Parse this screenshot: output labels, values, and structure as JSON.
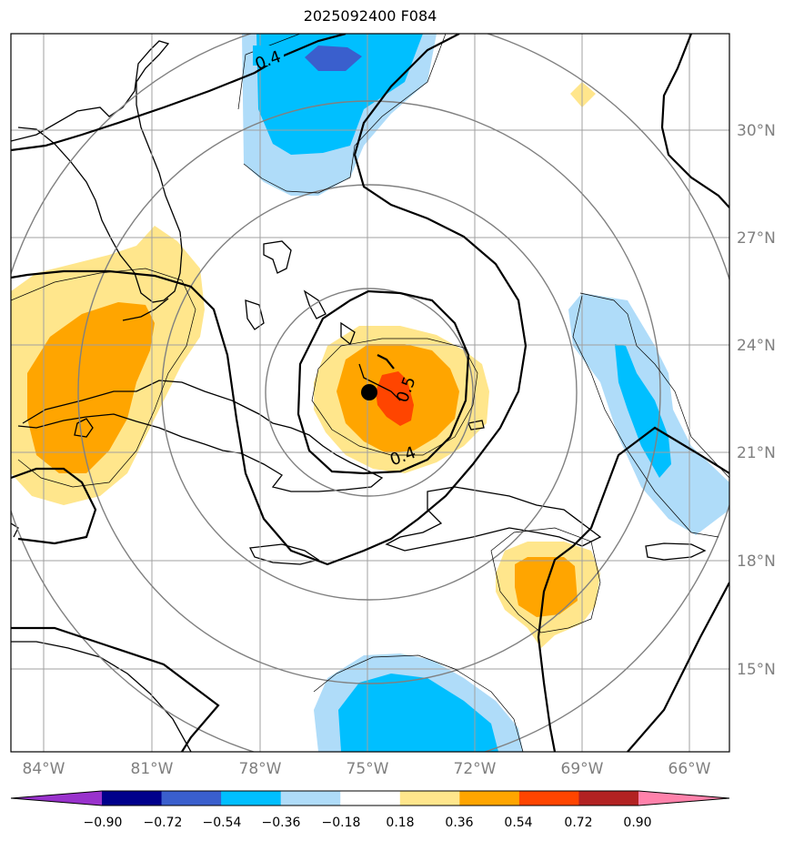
{
  "title": "2025092400 F084",
  "lon_labels": [
    "84°W",
    "81°W",
    "78°W",
    "75°W",
    "72°W",
    "69°W",
    "66°W"
  ],
  "lat_labels": [
    "30°N",
    "27°N",
    "24°N",
    "21°N",
    "18°N",
    "15°N"
  ],
  "contour_labels": [
    "0.4",
    "0.5",
    "0.4"
  ],
  "colorbar": {
    "ticks": [
      "−0.90",
      "−0.72",
      "−0.54",
      "−0.36",
      "−0.18",
      "0.18",
      "0.36",
      "0.54",
      "0.72",
      "0.90"
    ],
    "colors": [
      "#9932cc",
      "#00008b",
      "#3a5fcd",
      "#00bfff",
      "#afdcf9",
      "#ffffff",
      "#ffe68c",
      "#ffa500",
      "#ff4500",
      "#b22222",
      "#ff82ab"
    ]
  },
  "colors": {
    "frame": "#000000",
    "grid": "#a0a0a0",
    "label_gray": "#808080"
  },
  "storm_center": {
    "lon": -75.0,
    "lat": 22.7
  }
}
